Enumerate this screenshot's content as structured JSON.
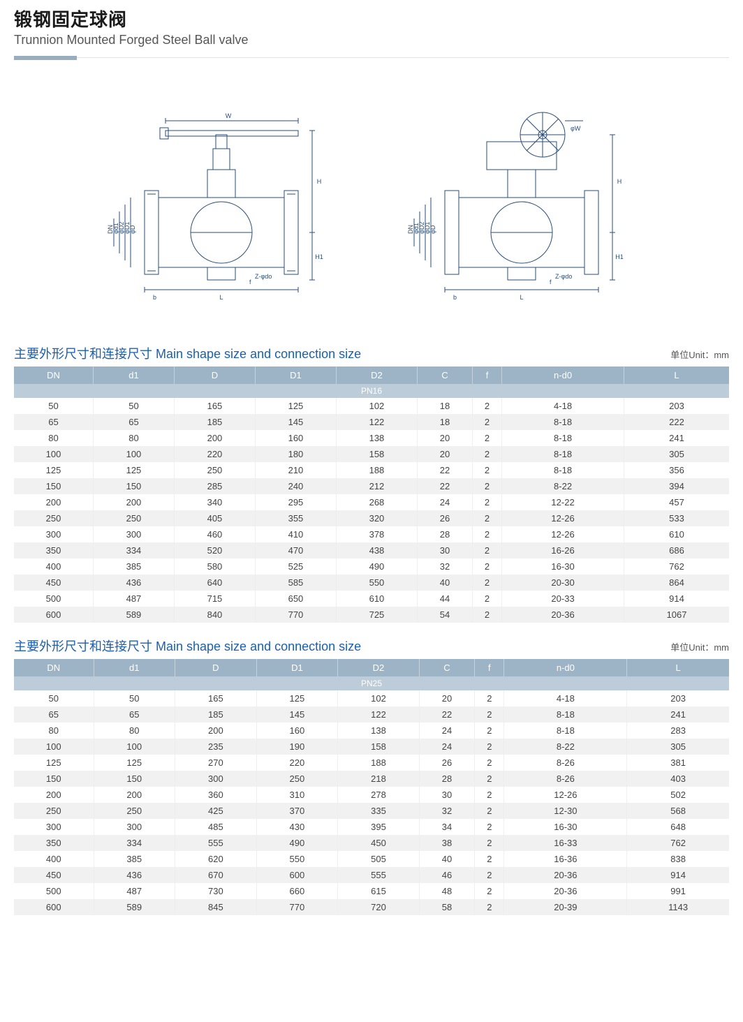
{
  "header": {
    "title_cn": "锻钢固定球阀",
    "title_en": "Trunnion Mounted Forged Steel Ball valve"
  },
  "diagrams": {
    "stroke_color": "#2a4d7a",
    "stroke_width": 1,
    "left": {
      "labels": [
        "W",
        "H",
        "H1",
        "L",
        "b",
        "f",
        "Z-φdo",
        "DN",
        "φd1",
        "φD2",
        "φD1",
        "φD"
      ]
    },
    "right": {
      "labels": [
        "φW",
        "H",
        "H1",
        "L",
        "b",
        "f",
        "Z-φdo",
        "DN",
        "φd1",
        "φD2",
        "φD1",
        "φD"
      ]
    }
  },
  "section": {
    "title": "主要外形尺寸和连接尺寸 Main shape size and connection size",
    "unit": "单位Unit：mm",
    "title_color": "#1a5fb4",
    "title_fontsize": 18
  },
  "table_style": {
    "header_bg": "#9db4c6",
    "header_fg": "#ffffff",
    "subhead_bg": "#bcccd9",
    "stripe_a": "#ffffff",
    "stripe_b": "#f1f1f1",
    "border": "#e8e8e8",
    "fontsize": 13
  },
  "columns": [
    "DN",
    "d1",
    "D",
    "D1",
    "D2",
    "C",
    "f",
    "n-d0",
    "L"
  ],
  "table1": {
    "subhead": "PN16",
    "rows": [
      [
        "50",
        "50",
        "165",
        "125",
        "102",
        "18",
        "2",
        "4-18",
        "203"
      ],
      [
        "65",
        "65",
        "185",
        "145",
        "122",
        "18",
        "2",
        "8-18",
        "222"
      ],
      [
        "80",
        "80",
        "200",
        "160",
        "138",
        "20",
        "2",
        "8-18",
        "241"
      ],
      [
        "100",
        "100",
        "220",
        "180",
        "158",
        "20",
        "2",
        "8-18",
        "305"
      ],
      [
        "125",
        "125",
        "250",
        "210",
        "188",
        "22",
        "2",
        "8-18",
        "356"
      ],
      [
        "150",
        "150",
        "285",
        "240",
        "212",
        "22",
        "2",
        "8-22",
        "394"
      ],
      [
        "200",
        "200",
        "340",
        "295",
        "268",
        "24",
        "2",
        "12-22",
        "457"
      ],
      [
        "250",
        "250",
        "405",
        "355",
        "320",
        "26",
        "2",
        "12-26",
        "533"
      ],
      [
        "300",
        "300",
        "460",
        "410",
        "378",
        "28",
        "2",
        "12-26",
        "610"
      ],
      [
        "350",
        "334",
        "520",
        "470",
        "438",
        "30",
        "2",
        "16-26",
        "686"
      ],
      [
        "400",
        "385",
        "580",
        "525",
        "490",
        "32",
        "2",
        "16-30",
        "762"
      ],
      [
        "450",
        "436",
        "640",
        "585",
        "550",
        "40",
        "2",
        "20-30",
        "864"
      ],
      [
        "500",
        "487",
        "715",
        "650",
        "610",
        "44",
        "2",
        "20-33",
        "914"
      ],
      [
        "600",
        "589",
        "840",
        "770",
        "725",
        "54",
        "2",
        "20-36",
        "1067"
      ]
    ]
  },
  "table2": {
    "subhead": "PN25",
    "rows": [
      [
        "50",
        "50",
        "165",
        "125",
        "102",
        "20",
        "2",
        "4-18",
        "203"
      ],
      [
        "65",
        "65",
        "185",
        "145",
        "122",
        "22",
        "2",
        "8-18",
        "241"
      ],
      [
        "80",
        "80",
        "200",
        "160",
        "138",
        "24",
        "2",
        "8-18",
        "283"
      ],
      [
        "100",
        "100",
        "235",
        "190",
        "158",
        "24",
        "2",
        "8-22",
        "305"
      ],
      [
        "125",
        "125",
        "270",
        "220",
        "188",
        "26",
        "2",
        "8-26",
        "381"
      ],
      [
        "150",
        "150",
        "300",
        "250",
        "218",
        "28",
        "2",
        "8-26",
        "403"
      ],
      [
        "200",
        "200",
        "360",
        "310",
        "278",
        "30",
        "2",
        "12-26",
        "502"
      ],
      [
        "250",
        "250",
        "425",
        "370",
        "335",
        "32",
        "2",
        "12-30",
        "568"
      ],
      [
        "300",
        "300",
        "485",
        "430",
        "395",
        "34",
        "2",
        "16-30",
        "648"
      ],
      [
        "350",
        "334",
        "555",
        "490",
        "450",
        "38",
        "2",
        "16-33",
        "762"
      ],
      [
        "400",
        "385",
        "620",
        "550",
        "505",
        "40",
        "2",
        "16-36",
        "838"
      ],
      [
        "450",
        "436",
        "670",
        "600",
        "555",
        "46",
        "2",
        "20-36",
        "914"
      ],
      [
        "500",
        "487",
        "730",
        "660",
        "615",
        "48",
        "2",
        "20-36",
        "991"
      ],
      [
        "600",
        "589",
        "845",
        "770",
        "720",
        "58",
        "2",
        "20-39",
        "1143"
      ]
    ]
  }
}
